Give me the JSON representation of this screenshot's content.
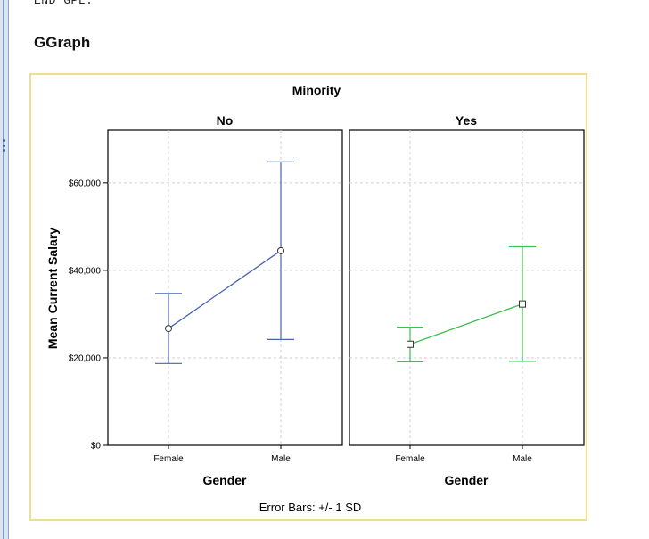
{
  "code_line": "END GPL.",
  "section_heading": "GGraph",
  "chart_data": {
    "type": "line",
    "title": "Minority",
    "facets": [
      "No",
      "Yes"
    ],
    "categories": [
      "Female",
      "Male"
    ],
    "xlabel": "Gender",
    "ylabel": "Mean Current Salary",
    "ylim": [
      0,
      72000
    ],
    "yticks": [
      0,
      20000,
      40000,
      60000
    ],
    "ytick_labels": [
      "$0",
      "$20,000",
      "$40,000",
      "$60,000"
    ],
    "grid": true,
    "footnote": "Error Bars: +/- 1 SD",
    "series": [
      {
        "facet": "No",
        "color": "#4a63b0",
        "marker": "circle",
        "means": [
          26700,
          44500
        ],
        "upper": [
          34700,
          64800
        ],
        "lower": [
          18700,
          24200
        ]
      },
      {
        "facet": "Yes",
        "color": "#3cbf4e",
        "marker": "square",
        "means": [
          23100,
          32300
        ],
        "upper": [
          27000,
          45400
        ],
        "lower": [
          19100,
          19200
        ]
      }
    ]
  }
}
